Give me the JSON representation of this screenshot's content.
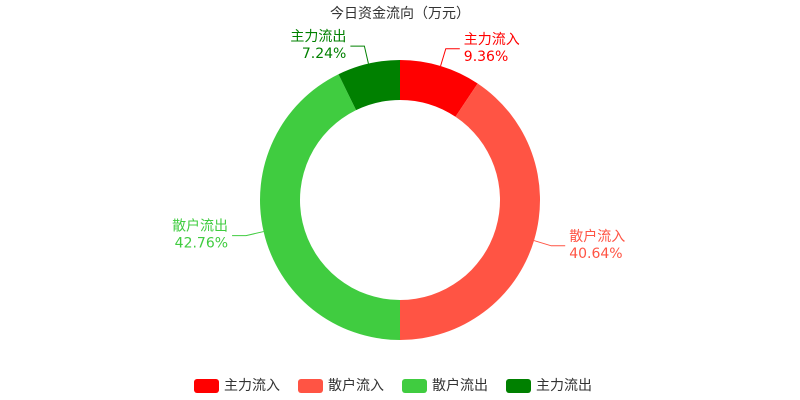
{
  "chart_data": {
    "type": "pie",
    "title": "今日资金流向（万元）",
    "categories": [
      "主力流入",
      "散户流入",
      "散户流出",
      "主力流出"
    ],
    "values": [
      9.36,
      40.64,
      42.76,
      7.24
    ],
    "value_labels": [
      "9.36%",
      "40.64%",
      "42.76%",
      "7.24%"
    ],
    "colors": [
      "#ff0000",
      "#ff5444",
      "#40cc40",
      "#008000"
    ],
    "legend": "bottom"
  }
}
